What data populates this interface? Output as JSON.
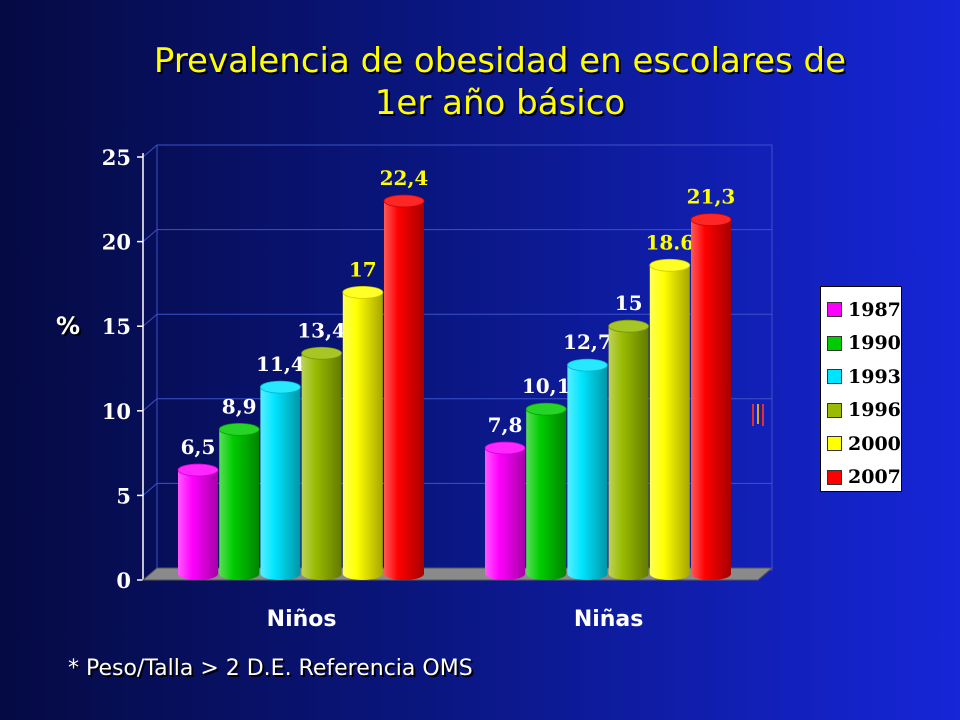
{
  "title_lines": [
    "Prevalencia de obesidad en escolares de",
    "1er  año básico"
  ],
  "footnote": "* Peso/Talla > 2 D.E. Referencia OMS",
  "chart_data": {
    "type": "bar",
    "title": "Prevalencia de obesidad en escolares de 1er  año básico",
    "xlabel": "",
    "ylabel": "%",
    "ylim": [
      0,
      25
    ],
    "yticks": [
      0,
      5,
      10,
      15,
      20,
      25
    ],
    "categories": [
      "Niños",
      "Niñas"
    ],
    "grid": true,
    "legend_position": "right",
    "series": [
      {
        "name": "1987",
        "color": "#ff00ff",
        "values": [
          6.5,
          7.8
        ],
        "labels": [
          "6,5",
          "7,8"
        ]
      },
      {
        "name": "1990",
        "color": "#00cc00",
        "values": [
          8.9,
          10.1
        ],
        "labels": [
          "8,9",
          "10,1"
        ]
      },
      {
        "name": "1993",
        "color": "#00e5ff",
        "values": [
          11.4,
          12.7
        ],
        "labels": [
          "11,4",
          "12,7"
        ]
      },
      {
        "name": "1996",
        "color": "#99bb00",
        "values": [
          13.4,
          15
        ],
        "labels": [
          "13,4",
          "15"
        ]
      },
      {
        "name": "2000",
        "color": "#ffff00",
        "values": [
          17,
          18.6
        ],
        "labels": [
          "17",
          "18.6"
        ]
      },
      {
        "name": "2007",
        "color": "#ff0000",
        "values": [
          22.4,
          21.3
        ],
        "labels": [
          "22,4",
          "21,3"
        ]
      }
    ]
  }
}
